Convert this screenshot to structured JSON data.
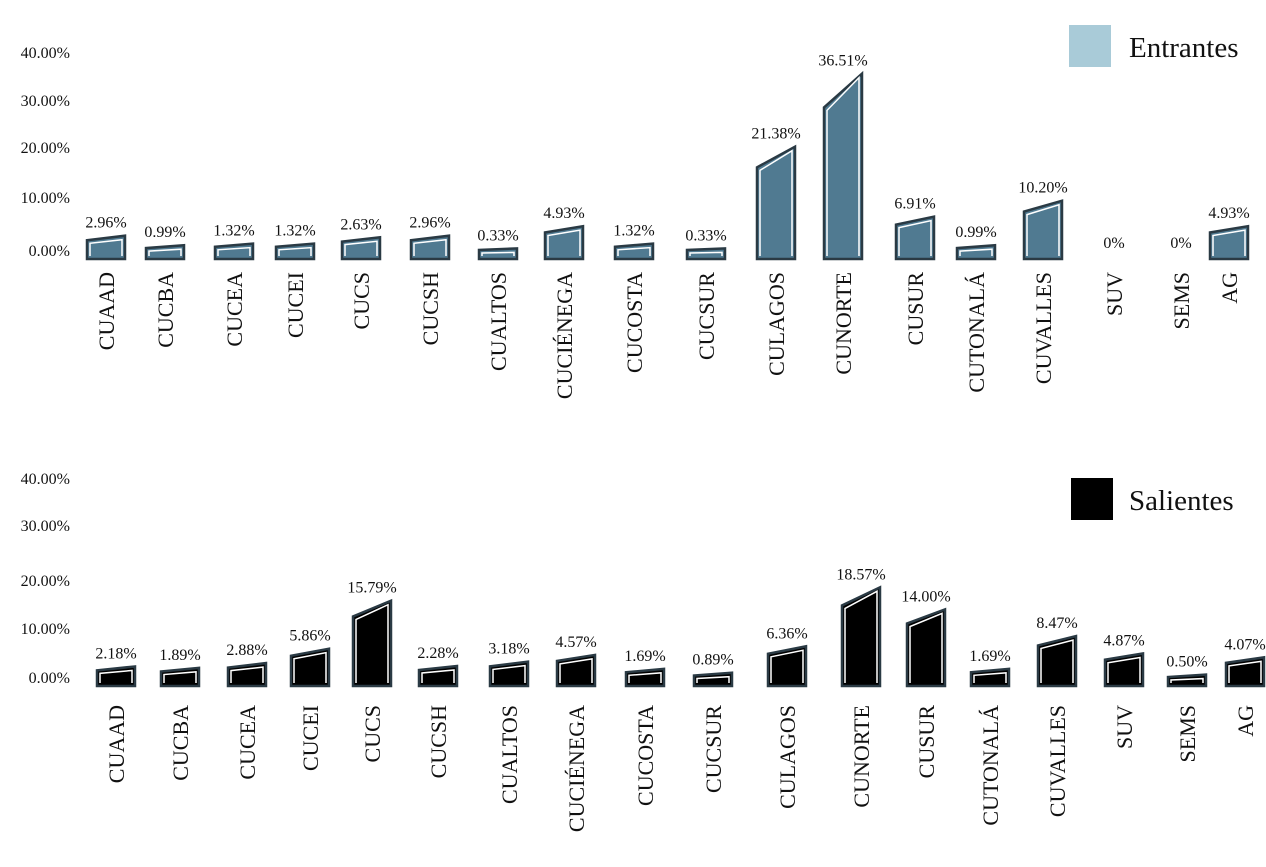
{
  "chart_data": [
    {
      "type": "bar",
      "categories": [
        "CUAAD",
        "CUCBA",
        "CUCEA",
        "CUCEI",
        "CUCS",
        "CUCSH",
        "CUALTOS",
        "CUCIÉNEGA",
        "CUCOSTA",
        "CUCSUR",
        "CULAGOS",
        "CUNORTE",
        "CUSUR",
        "CUTONALÁ",
        "CUVALLES",
        "SUV",
        "SEMS",
        "AG"
      ],
      "series": [
        {
          "name": "Entrantes",
          "values": [
            2.96,
            0.99,
            1.32,
            1.32,
            2.63,
            2.96,
            0.33,
            4.93,
            1.32,
            0.33,
            21.38,
            36.51,
            6.91,
            0.99,
            10.2,
            0,
            0,
            4.93
          ],
          "labels": [
            "2.96%",
            "0.99%",
            "1.32%",
            "1.32%",
            "2.63%",
            "2.96%",
            "0.33%",
            "4.93%",
            "1.32%",
            "0.33%",
            "21.38%",
            "36.51%",
            "6.91%",
            "0.99%",
            "10.20%",
            "0%",
            "0%",
            "4.93%"
          ]
        }
      ],
      "yticks": [
        "0.00%",
        "10.00%",
        "20.00%",
        "30.00%",
        "40.00%"
      ],
      "ylim": [
        0,
        40
      ],
      "color": "#507a91",
      "legend_color": "#a9cbd8",
      "legend_position": "top-right",
      "grid": false
    },
    {
      "type": "bar",
      "categories": [
        "CUAAD",
        "CUCBA",
        "CUCEA",
        "CUCEI",
        "CUCS",
        "CUCSH",
        "CUALTOS",
        "CUCIÉNEGA",
        "CUCOSTA",
        "CUCSUR",
        "CULAGOS",
        "CUNORTE",
        "CUSUR",
        "CUTONALÁ",
        "CUVALLES",
        "SUV",
        "SEMS",
        "AG"
      ],
      "series": [
        {
          "name": "Salientes",
          "values": [
            2.18,
            1.89,
            2.88,
            5.86,
            15.79,
            2.28,
            3.18,
            4.57,
            1.69,
            0.89,
            6.36,
            18.57,
            14.0,
            1.69,
            8.47,
            4.87,
            0.5,
            4.07
          ],
          "labels": [
            "2.18%",
            "1.89%",
            "2.88%",
            "5.86%",
            "15.79%",
            "2.28%",
            "3.18%",
            "4.57%",
            "1.69%",
            "0.89%",
            "6.36%",
            "18.57%",
            "14.00%",
            "1.69%",
            "8.47%",
            "4.87%",
            "0.50%",
            "4.07%"
          ]
        }
      ],
      "yticks": [
        "0.00%",
        "10.00%",
        "20.00%",
        "30.00%",
        "40.00%"
      ],
      "ylim": [
        0,
        40
      ],
      "color": "#000000",
      "legend_color": "#000000",
      "legend_position": "top-right",
      "grid": false
    }
  ]
}
